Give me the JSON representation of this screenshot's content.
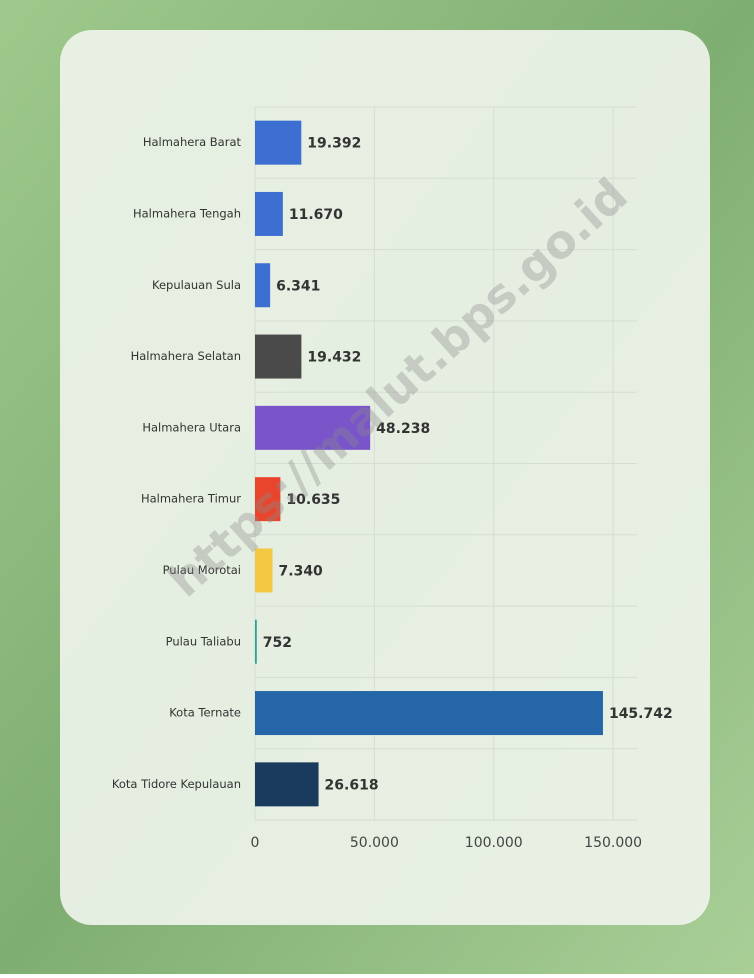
{
  "chart_data": {
    "type": "bar",
    "orientation": "horizontal",
    "categories": [
      "Halmahera Barat",
      "Halmahera Tengah",
      "Kepulauan Sula",
      "Halmahera Selatan",
      "Halmahera Utara",
      "Halmahera Timur",
      "Pulau Morotai",
      "Pulau Taliabu",
      "Kota Ternate",
      "Kota Tidore Kepulauan"
    ],
    "values": [
      19392,
      11670,
      6341,
      19432,
      48238,
      10635,
      7340,
      752,
      145742,
      26618
    ],
    "value_labels": [
      "19.392",
      "11.670",
      "6.341",
      "19.432",
      "48.238",
      "10.635",
      "7.340",
      "752",
      "145.742",
      "26.618"
    ],
    "colors": [
      "#3d6fd3",
      "#3d6fd3",
      "#3d6fd3",
      "#4a4a4a",
      "#7a55c9",
      "#e8452c",
      "#f3c843",
      "#2aa39a",
      "#2466a8",
      "#1b3b5e"
    ],
    "xlim": [
      0,
      160000
    ],
    "xticks": [
      0,
      {
        "value": 50000,
        "label": "50.000"
      },
      {
        "value": 100000,
        "label": "100.000"
      },
      {
        "value": 150000,
        "label": "150.000"
      }
    ],
    "grid": true,
    "watermark": "https://malut.bps.go.id"
  }
}
